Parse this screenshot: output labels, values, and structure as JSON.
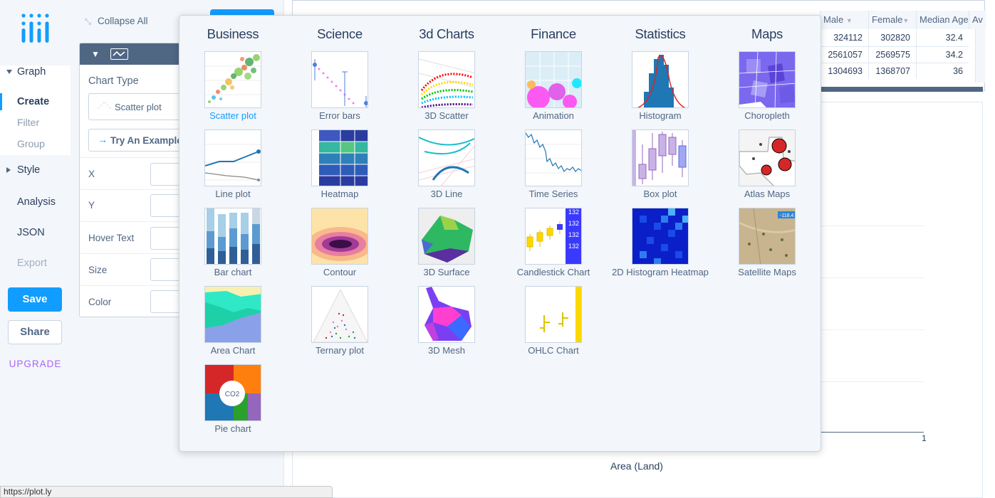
{
  "sidebar": {
    "graph": "Graph",
    "create": "Create",
    "filter": "Filter",
    "group": "Group",
    "style": "Style",
    "analysis": "Analysis",
    "json": "JSON",
    "export": "Export",
    "save": "Save",
    "share": "Share",
    "upgrade": "UPGRADE"
  },
  "panel": {
    "collapse_all": "Collapse All",
    "chart_type_label": "Chart Type",
    "chart_type_value": "Scatter plot",
    "try_example": "Try An Example",
    "fields": [
      "X",
      "Y",
      "Hover Text",
      "Size",
      "Color"
    ]
  },
  "grid": {
    "headers": [
      "Male",
      "Female",
      "Median Age",
      "Av"
    ],
    "rows": [
      [
        "324112",
        "302820",
        "32.4"
      ],
      [
        "2561057",
        "2569575",
        "34.2"
      ],
      [
        "1304693",
        "1368707",
        "36"
      ]
    ]
  },
  "plot": {
    "x_tick": "1",
    "x_title": "Area (Land)"
  },
  "status_url": "https://plot.ly",
  "picker": {
    "categories": [
      "Business",
      "Science",
      "3d Charts",
      "Finance",
      "Statistics",
      "Maps"
    ],
    "charts": {
      "business": [
        "Scatter plot",
        "Line plot",
        "Bar chart",
        "Area Chart",
        "Pie chart"
      ],
      "science": [
        "Error bars",
        "Heatmap",
        "Contour",
        "Ternary plot"
      ],
      "charts3d": [
        "3D Scatter",
        "3D Line",
        "3D Surface",
        "3D Mesh"
      ],
      "finance": [
        "Animation",
        "Time Series",
        "Candlestick Chart",
        "OHLC Chart"
      ],
      "statistics": [
        "Histogram",
        "Box plot",
        "2D Histogram Heatmap"
      ],
      "maps": [
        "Choropleth",
        "Atlas Maps",
        "Satellite Maps"
      ]
    },
    "selected": "Scatter plot",
    "pie_center_label": "CO2",
    "satellite_badge": "-118.4",
    "candlestick_badge": "132"
  },
  "colors": {
    "accent": "#119dff",
    "upgrade": "#ab63fa",
    "header_dark": "#506784",
    "panel_bg": "#f3f6fa"
  }
}
